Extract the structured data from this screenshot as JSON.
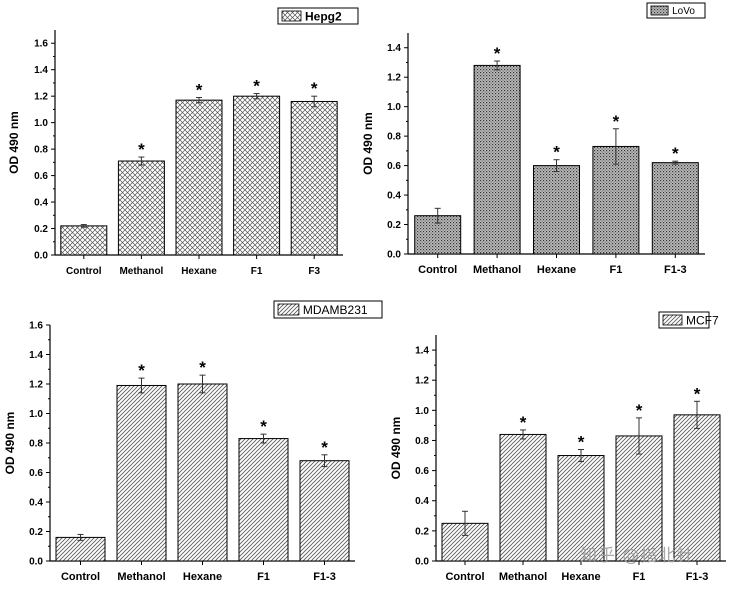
{
  "chart_data": [
    {
      "type": "bar",
      "legend": "Hepg2",
      "ylabel": "OD 490 nm",
      "categories": [
        "Control",
        "Methanol",
        "Hexane",
        "F1",
        "F3"
      ],
      "values": [
        0.22,
        0.71,
        1.17,
        1.2,
        1.16
      ],
      "errors": [
        0.01,
        0.03,
        0.02,
        0.02,
        0.04
      ],
      "significance": [
        "",
        "*",
        "*",
        "*",
        "*"
      ],
      "ylim": [
        0,
        1.7
      ],
      "yticks": [
        "0.0",
        "0.2",
        "0.4",
        "0.6",
        "0.8",
        "1.0",
        "1.2",
        "1.4",
        "1.6"
      ],
      "pattern": "crosshatch"
    },
    {
      "type": "bar",
      "legend": "LoVo",
      "ylabel": "OD 490 nm",
      "categories": [
        "Control",
        "Methanol",
        "Hexane",
        "F1",
        "F1-3"
      ],
      "values": [
        0.26,
        1.28,
        0.6,
        0.73,
        0.62
      ],
      "errors": [
        0.05,
        0.03,
        0.04,
        0.12,
        0.01
      ],
      "significance": [
        "",
        "*",
        "*",
        "*",
        "*"
      ],
      "ylim": [
        0,
        1.5
      ],
      "yticks": [
        "0.0",
        "0.2",
        "0.4",
        "0.6",
        "0.8",
        "1.0",
        "1.2",
        "1.4"
      ],
      "pattern": "dots"
    },
    {
      "type": "bar",
      "legend": "MDAMB231",
      "ylabel": "OD 490 nm",
      "categories": [
        "Control",
        "Methanol",
        "Hexane",
        "F1",
        "F1-3"
      ],
      "values": [
        0.16,
        1.19,
        1.2,
        0.83,
        0.68
      ],
      "errors": [
        0.02,
        0.05,
        0.06,
        0.03,
        0.04
      ],
      "significance": [
        "",
        "*",
        "*",
        "*",
        "*"
      ],
      "ylim": [
        0,
        1.6
      ],
      "yticks": [
        "0.0",
        "0.2",
        "0.4",
        "0.6",
        "0.8",
        "1.0",
        "1.2",
        "1.4",
        "1.6"
      ],
      "pattern": "diagonal"
    },
    {
      "type": "bar",
      "legend": "MCF7",
      "ylabel": "OD 490 nm",
      "categories": [
        "Control",
        "Methanol",
        "Hexane",
        "F1",
        "F1-3"
      ],
      "values": [
        0.25,
        0.84,
        0.7,
        0.83,
        0.97
      ],
      "errors": [
        0.08,
        0.03,
        0.04,
        0.12,
        0.09
      ],
      "significance": [
        "",
        "*",
        "*",
        "*",
        "*"
      ],
      "ylim": [
        0,
        1.5
      ],
      "yticks": [
        "0.0",
        "0.2",
        "0.4",
        "0.6",
        "0.8",
        "1.0",
        "1.2",
        "1.4"
      ],
      "pattern": "diagonal"
    }
  ],
  "watermark": "知乎 @指北针"
}
